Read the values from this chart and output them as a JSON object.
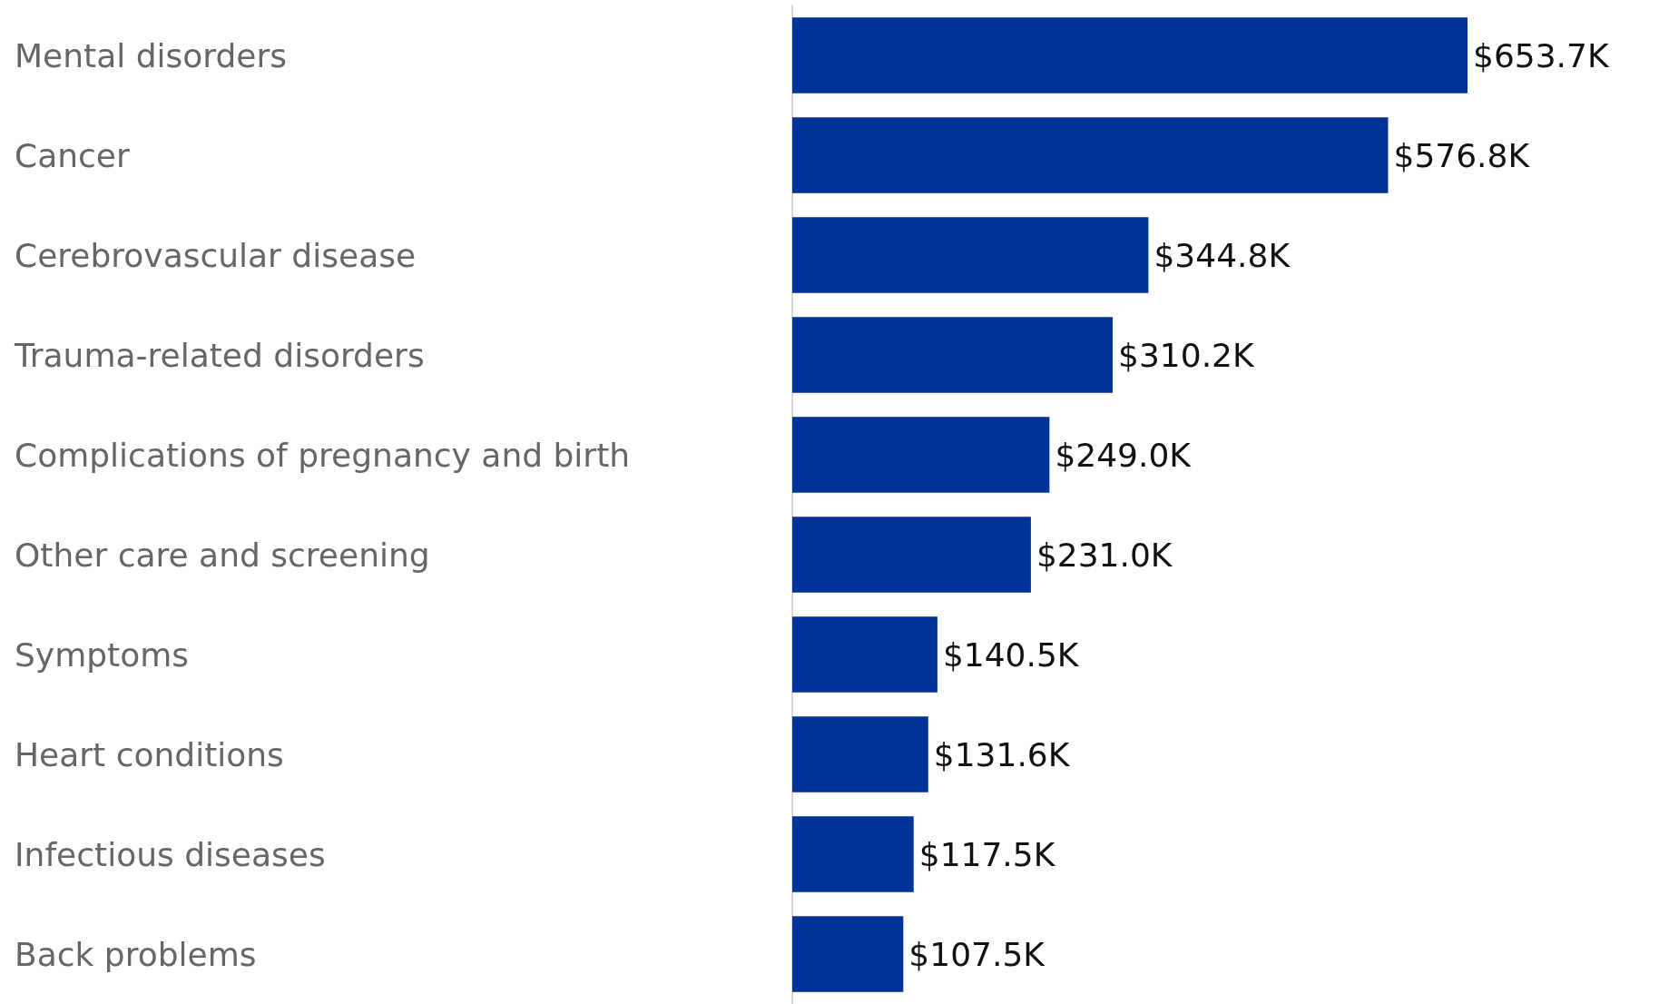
{
  "chart_data": {
    "type": "bar",
    "orientation": "horizontal",
    "categories": [
      "Mental disorders",
      "Cancer",
      "Cerebrovascular disease",
      "Trauma-related disorders",
      "Complications of pregnancy and birth",
      "Other care and screening",
      "Symptoms",
      "Heart conditions",
      "Infectious diseases",
      "Back problems"
    ],
    "values": [
      653.7,
      576.8,
      344.8,
      310.2,
      249.0,
      231.0,
      140.5,
      131.6,
      117.5,
      107.5
    ],
    "value_labels": [
      "$653.7K",
      "$576.8K",
      "$344.8K",
      "$310.2K",
      "$249.0K",
      "$231.0K",
      "$140.5K",
      "$131.6K",
      "$117.5K",
      "$107.5K"
    ],
    "color": "#00339a"
  }
}
